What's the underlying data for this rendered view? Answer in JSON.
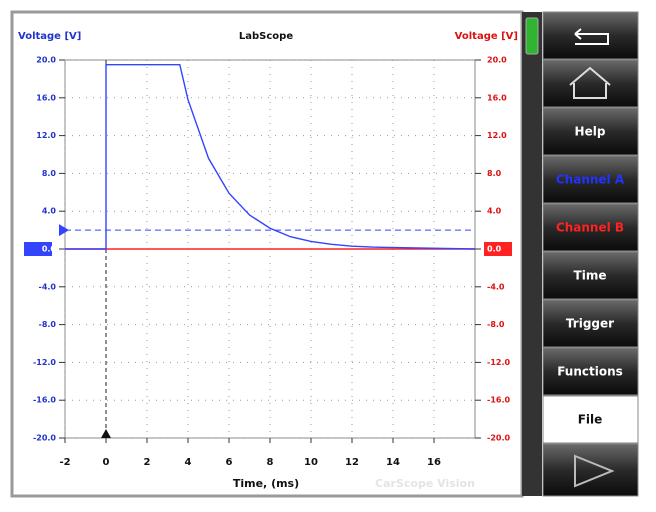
{
  "header": {
    "left_axis_label": "Voltage [V]",
    "title": "LabScope",
    "right_axis_label": "Voltage [V]",
    "watermark": "CarScope Vision"
  },
  "menu": {
    "help": "Help",
    "time": "Time",
    "trigger": "Trigger",
    "functions": "Functions",
    "file": "File"
  },
  "chart_data": {
    "type": "line",
    "x_label": "Time, (ms)",
    "x": [
      -2,
      0,
      0,
      3.6,
      4,
      5,
      6,
      7,
      8,
      9,
      10,
      11,
      12,
      13,
      18
    ],
    "series": [
      {
        "name": "Channel A",
        "color": "#3344ff",
        "values": [
          0,
          0,
          19.5,
          19.5,
          15.8,
          9.6,
          5.9,
          3.6,
          2.2,
          1.3,
          0.8,
          0.5,
          0.3,
          0.2,
          0
        ]
      },
      {
        "name": "Channel B",
        "color": "#ff2222",
        "values": [
          0,
          0,
          0,
          0,
          0,
          0,
          0,
          0,
          0,
          0,
          0,
          0,
          0,
          0,
          0
        ]
      }
    ],
    "xlim": [
      -2,
      18
    ],
    "xticks": [
      -2,
      0,
      2,
      4,
      6,
      8,
      10,
      12,
      14,
      16
    ],
    "ylim": [
      -20,
      20
    ],
    "yticks": [
      {
        "value": 20,
        "label": "20.0"
      },
      {
        "value": 16,
        "label": "16.0"
      },
      {
        "value": 12,
        "label": "12.0"
      },
      {
        "value": 8,
        "label": "8.0"
      },
      {
        "value": 4,
        "label": "4.0"
      },
      {
        "value": 0,
        "label": "0.0"
      },
      {
        "value": -4,
        "label": "-4.0"
      },
      {
        "value": -8,
        "label": "-8.0"
      },
      {
        "value": -12,
        "label": "-12.0"
      },
      {
        "value": -16,
        "label": "-16.0"
      },
      {
        "value": -20,
        "label": "-20.0"
      }
    ],
    "y2lim": [
      -20,
      20
    ],
    "y2ticks": [
      {
        "value": 20,
        "label": "20.0"
      },
      {
        "value": 16,
        "label": "16.0"
      },
      {
        "value": 12,
        "label": "12.0"
      },
      {
        "value": 8,
        "label": "8.0"
      },
      {
        "value": 4,
        "label": "4.0"
      },
      {
        "value": 0,
        "label": "0.0"
      },
      {
        "value": -4,
        "label": "-4.0"
      },
      {
        "value": -8,
        "label": "-8.0"
      },
      {
        "value": -12,
        "label": "-12.0"
      },
      {
        "value": -16,
        "label": "-16.0"
      },
      {
        "value": -20,
        "label": "-20.0"
      }
    ],
    "grid": true,
    "trigger_level": 2,
    "trigger_time": 0
  }
}
